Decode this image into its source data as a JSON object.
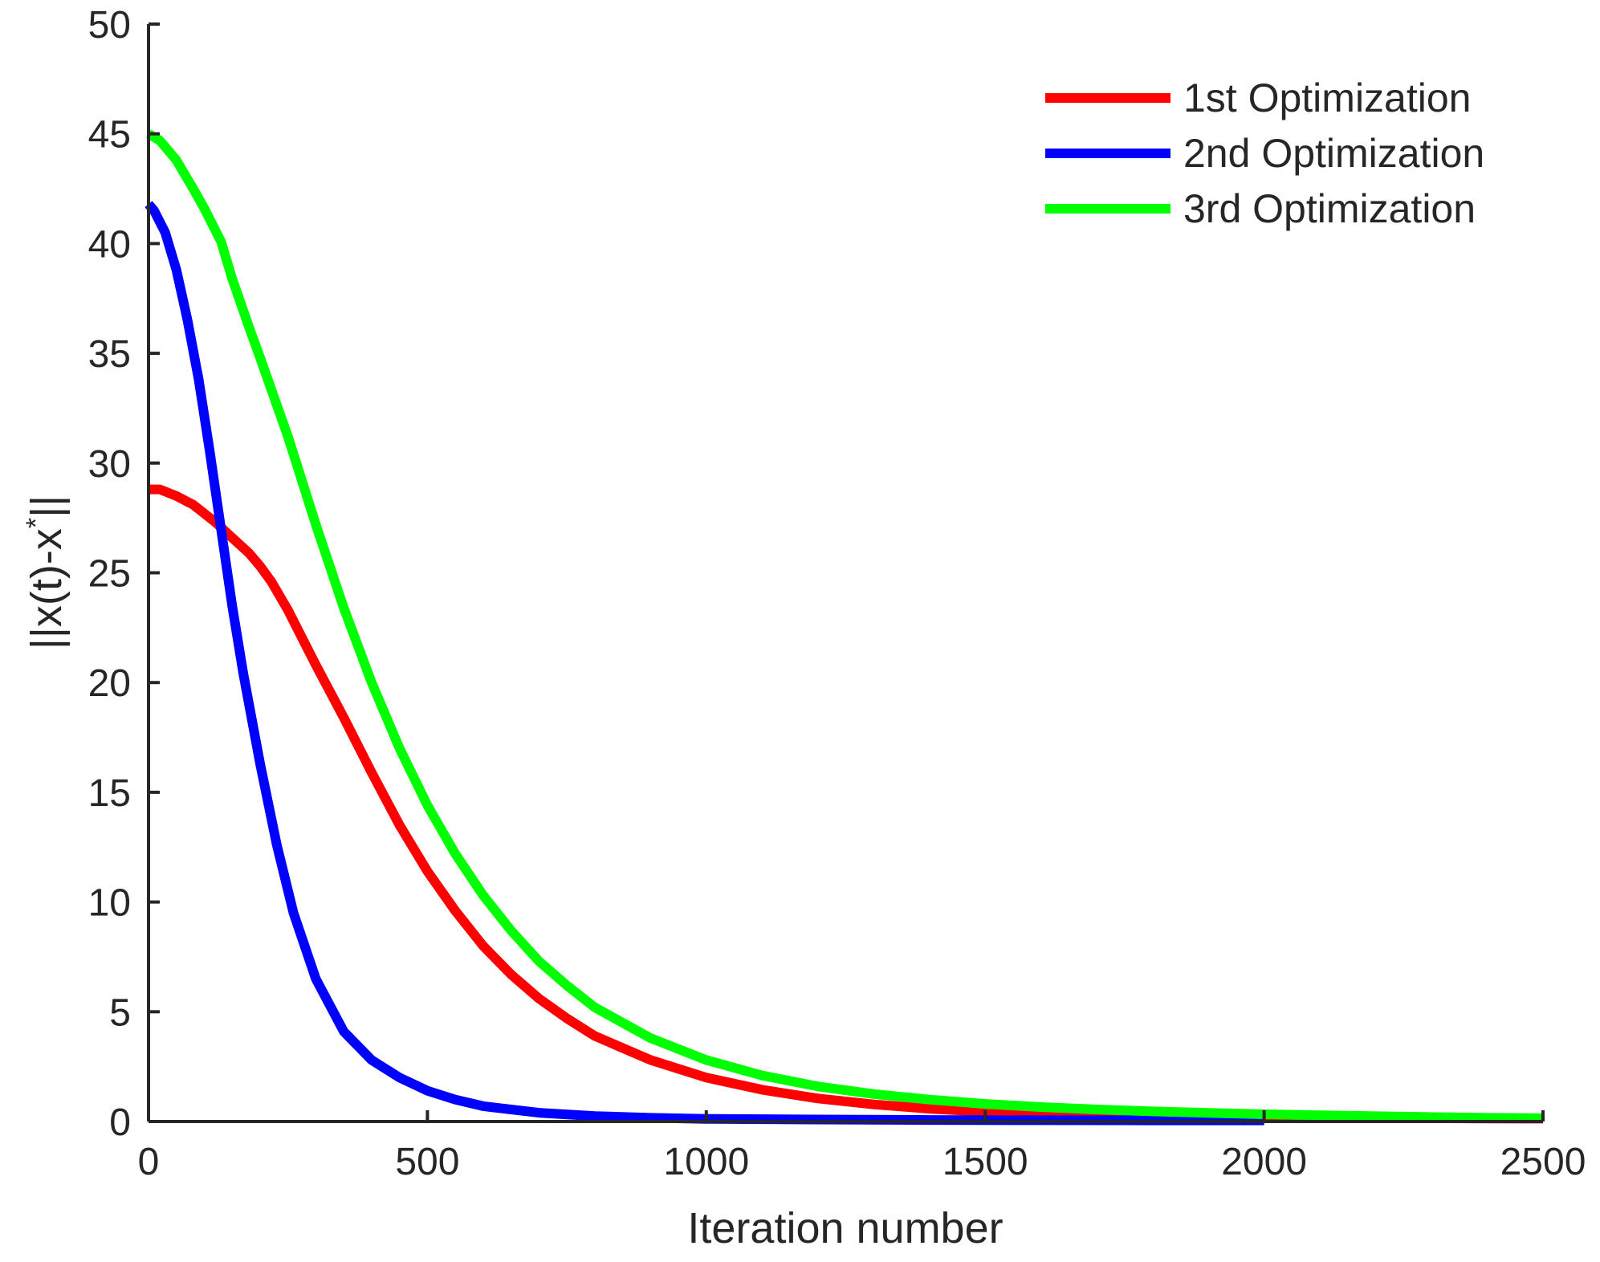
{
  "chart_data": {
    "type": "line",
    "title": "",
    "xlabel": "Iteration number",
    "ylabel": "||x(t)-x",
    "ylabel_superscript": "*",
    "ylabel_suffix": "||",
    "xlim": [
      0,
      2500
    ],
    "ylim": [
      0,
      50
    ],
    "xticks": [
      0,
      500,
      1000,
      1500,
      2000,
      2500
    ],
    "yticks": [
      0,
      5,
      10,
      15,
      20,
      25,
      30,
      35,
      40,
      45,
      50
    ],
    "grid": false,
    "legend_position": "top-right",
    "series": [
      {
        "name": "1st Optimization",
        "color": "#ff0000",
        "x": [
          0,
          20,
          50,
          80,
          120,
          150,
          180,
          200,
          220,
          250,
          280,
          300,
          350,
          400,
          450,
          500,
          550,
          600,
          650,
          700,
          750,
          800,
          900,
          1000,
          1100,
          1200,
          1300,
          1400,
          1500,
          1600,
          1700,
          1800,
          1900,
          2000,
          2100,
          2200,
          2300,
          2400,
          2500
        ],
        "y": [
          28.8,
          28.8,
          28.5,
          28.1,
          27.3,
          26.6,
          25.9,
          25.3,
          24.6,
          23.3,
          21.8,
          20.8,
          18.4,
          15.9,
          13.5,
          11.4,
          9.6,
          8.0,
          6.7,
          5.6,
          4.7,
          3.9,
          2.8,
          2.0,
          1.45,
          1.05,
          0.78,
          0.58,
          0.45,
          0.36,
          0.3,
          0.26,
          0.23,
          0.2,
          0.18,
          0.16,
          0.15,
          0.14,
          0.13
        ]
      },
      {
        "name": "2nd Optimization",
        "color": "#0000ff",
        "x": [
          0,
          10,
          30,
          50,
          70,
          90,
          110,
          130,
          150,
          170,
          200,
          230,
          260,
          300,
          350,
          400,
          450,
          500,
          550,
          600,
          700,
          800,
          900,
          1000,
          1200,
          1400,
          1600,
          1800,
          2000
        ],
        "y": [
          41.8,
          41.5,
          40.5,
          38.8,
          36.5,
          33.8,
          30.5,
          27.0,
          23.5,
          20.4,
          16.3,
          12.6,
          9.5,
          6.5,
          4.1,
          2.8,
          2.0,
          1.4,
          1.0,
          0.7,
          0.4,
          0.25,
          0.17,
          0.12,
          0.09,
          0.07,
          0.06,
          0.05,
          0.05
        ]
      },
      {
        "name": "3rd Optimization",
        "color": "#00ff00",
        "x": [
          0,
          20,
          50,
          80,
          100,
          130,
          150,
          180,
          200,
          250,
          300,
          350,
          400,
          450,
          500,
          550,
          600,
          650,
          700,
          750,
          800,
          900,
          1000,
          1100,
          1200,
          1300,
          1400,
          1500,
          1600,
          1700,
          1800,
          1900,
          2000,
          2100,
          2200,
          2300,
          2400,
          2500
        ],
        "y": [
          45.0,
          44.7,
          43.8,
          42.5,
          41.6,
          40.1,
          38.4,
          36.2,
          34.8,
          31.2,
          27.2,
          23.4,
          20.0,
          17.0,
          14.4,
          12.2,
          10.3,
          8.7,
          7.3,
          6.2,
          5.2,
          3.8,
          2.8,
          2.1,
          1.6,
          1.25,
          1.0,
          0.8,
          0.66,
          0.55,
          0.46,
          0.39,
          0.33,
          0.28,
          0.24,
          0.2,
          0.17,
          0.15
        ]
      }
    ]
  }
}
